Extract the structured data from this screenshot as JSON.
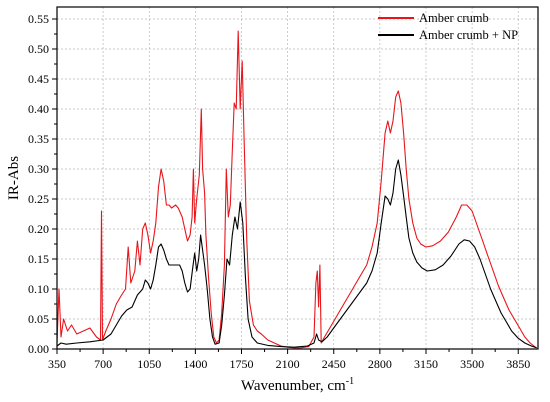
{
  "chart_data": {
    "type": "line",
    "title": "",
    "xlabel": "Wavenumber, cm",
    "xlabel_sup": "-1",
    "ylabel": "IR-Abs",
    "xlim": [
      350,
      4000
    ],
    "ylim": [
      0,
      0.57
    ],
    "x_ticks": [
      350,
      700,
      1050,
      1400,
      1750,
      2100,
      2450,
      2800,
      3150,
      3500,
      3850
    ],
    "y_ticks": [
      0.0,
      0.05,
      0.1,
      0.15,
      0.2,
      0.25,
      0.3,
      0.35,
      0.4,
      0.45,
      0.5,
      0.55
    ],
    "x_tick_labels": [
      "350",
      "700",
      "1050",
      "1400",
      "1750",
      "2100",
      "2450",
      "2800",
      "3150",
      "3500",
      "3850"
    ],
    "y_tick_labels": [
      "0.00",
      "0.05",
      "0.10",
      "0.15",
      "0.20",
      "0.25",
      "0.30",
      "0.35",
      "0.40",
      "0.45",
      "0.50",
      "0.55"
    ],
    "grid": true,
    "legend_position": "top-right",
    "series": [
      {
        "name": "Amber crumb",
        "color": "#e8151b",
        "points": [
          [
            350,
            0.01
          ],
          [
            365,
            0.1
          ],
          [
            380,
            0.02
          ],
          [
            400,
            0.05
          ],
          [
            430,
            0.03
          ],
          [
            460,
            0.04
          ],
          [
            500,
            0.025
          ],
          [
            550,
            0.03
          ],
          [
            600,
            0.035
          ],
          [
            650,
            0.02
          ],
          [
            680,
            0.015
          ],
          [
            688,
            0.23
          ],
          [
            695,
            0.015
          ],
          [
            720,
            0.03
          ],
          [
            760,
            0.05
          ],
          [
            800,
            0.075
          ],
          [
            840,
            0.09
          ],
          [
            870,
            0.1
          ],
          [
            890,
            0.17
          ],
          [
            910,
            0.11
          ],
          [
            940,
            0.13
          ],
          [
            960,
            0.18
          ],
          [
            980,
            0.14
          ],
          [
            1000,
            0.2
          ],
          [
            1020,
            0.21
          ],
          [
            1040,
            0.19
          ],
          [
            1060,
            0.16
          ],
          [
            1080,
            0.18
          ],
          [
            1100,
            0.21
          ],
          [
            1120,
            0.27
          ],
          [
            1140,
            0.3
          ],
          [
            1160,
            0.28
          ],
          [
            1180,
            0.24
          ],
          [
            1200,
            0.24
          ],
          [
            1220,
            0.235
          ],
          [
            1250,
            0.24
          ],
          [
            1270,
            0.235
          ],
          [
            1300,
            0.22
          ],
          [
            1320,
            0.2
          ],
          [
            1340,
            0.18
          ],
          [
            1360,
            0.19
          ],
          [
            1375,
            0.22
          ],
          [
            1385,
            0.3
          ],
          [
            1395,
            0.21
          ],
          [
            1410,
            0.25
          ],
          [
            1430,
            0.29
          ],
          [
            1445,
            0.4
          ],
          [
            1455,
            0.3
          ],
          [
            1470,
            0.26
          ],
          [
            1480,
            0.19
          ],
          [
            1500,
            0.12
          ],
          [
            1520,
            0.06
          ],
          [
            1540,
            0.02
          ],
          [
            1560,
            0.01
          ],
          [
            1580,
            0.015
          ],
          [
            1600,
            0.06
          ],
          [
            1620,
            0.14
          ],
          [
            1635,
            0.3
          ],
          [
            1650,
            0.22
          ],
          [
            1665,
            0.24
          ],
          [
            1680,
            0.33
          ],
          [
            1695,
            0.41
          ],
          [
            1710,
            0.4
          ],
          [
            1725,
            0.53
          ],
          [
            1740,
            0.4
          ],
          [
            1755,
            0.48
          ],
          [
            1770,
            0.35
          ],
          [
            1790,
            0.18
          ],
          [
            1810,
            0.08
          ],
          [
            1840,
            0.04
          ],
          [
            1870,
            0.03
          ],
          [
            1900,
            0.025
          ],
          [
            1950,
            0.015
          ],
          [
            2000,
            0.01
          ],
          [
            2050,
            0.005
          ],
          [
            2100,
            0.003
          ],
          [
            2150,
            0.002
          ],
          [
            2200,
            0.002
          ],
          [
            2260,
            0.004
          ],
          [
            2300,
            0.02
          ],
          [
            2315,
            0.11
          ],
          [
            2325,
            0.13
          ],
          [
            2335,
            0.07
          ],
          [
            2345,
            0.14
          ],
          [
            2355,
            0.01
          ],
          [
            2380,
            0.02
          ],
          [
            2420,
            0.035
          ],
          [
            2460,
            0.05
          ],
          [
            2500,
            0.065
          ],
          [
            2540,
            0.08
          ],
          [
            2580,
            0.095
          ],
          [
            2620,
            0.11
          ],
          [
            2660,
            0.125
          ],
          [
            2700,
            0.14
          ],
          [
            2740,
            0.17
          ],
          [
            2780,
            0.21
          ],
          [
            2810,
            0.28
          ],
          [
            2840,
            0.36
          ],
          [
            2860,
            0.38
          ],
          [
            2880,
            0.36
          ],
          [
            2900,
            0.38
          ],
          [
            2920,
            0.42
          ],
          [
            2940,
            0.43
          ],
          [
            2960,
            0.41
          ],
          [
            2980,
            0.36
          ],
          [
            3000,
            0.3
          ],
          [
            3020,
            0.25
          ],
          [
            3050,
            0.21
          ],
          [
            3080,
            0.185
          ],
          [
            3110,
            0.175
          ],
          [
            3150,
            0.17
          ],
          [
            3200,
            0.172
          ],
          [
            3260,
            0.18
          ],
          [
            3320,
            0.195
          ],
          [
            3380,
            0.22
          ],
          [
            3420,
            0.24
          ],
          [
            3460,
            0.24
          ],
          [
            3500,
            0.23
          ],
          [
            3540,
            0.205
          ],
          [
            3580,
            0.18
          ],
          [
            3620,
            0.155
          ],
          [
            3660,
            0.13
          ],
          [
            3700,
            0.105
          ],
          [
            3740,
            0.085
          ],
          [
            3780,
            0.065
          ],
          [
            3820,
            0.05
          ],
          [
            3860,
            0.035
          ],
          [
            3900,
            0.02
          ],
          [
            3940,
            0.01
          ],
          [
            3980,
            0.003
          ]
        ]
      },
      {
        "name": "Amber crumb + NP",
        "color": "#000000",
        "points": [
          [
            350,
            0.005
          ],
          [
            380,
            0.01
          ],
          [
            420,
            0.008
          ],
          [
            500,
            0.01
          ],
          [
            600,
            0.012
          ],
          [
            700,
            0.015
          ],
          [
            760,
            0.025
          ],
          [
            800,
            0.04
          ],
          [
            840,
            0.055
          ],
          [
            880,
            0.065
          ],
          [
            920,
            0.07
          ],
          [
            960,
            0.09
          ],
          [
            1000,
            0.1
          ],
          [
            1020,
            0.115
          ],
          [
            1040,
            0.11
          ],
          [
            1060,
            0.1
          ],
          [
            1080,
            0.115
          ],
          [
            1100,
            0.14
          ],
          [
            1120,
            0.17
          ],
          [
            1140,
            0.175
          ],
          [
            1160,
            0.165
          ],
          [
            1180,
            0.15
          ],
          [
            1200,
            0.14
          ],
          [
            1220,
            0.14
          ],
          [
            1250,
            0.14
          ],
          [
            1280,
            0.14
          ],
          [
            1300,
            0.13
          ],
          [
            1320,
            0.11
          ],
          [
            1340,
            0.095
          ],
          [
            1360,
            0.1
          ],
          [
            1380,
            0.135
          ],
          [
            1395,
            0.16
          ],
          [
            1410,
            0.13
          ],
          [
            1425,
            0.15
          ],
          [
            1440,
            0.19
          ],
          [
            1455,
            0.165
          ],
          [
            1470,
            0.14
          ],
          [
            1490,
            0.1
          ],
          [
            1510,
            0.05
          ],
          [
            1530,
            0.02
          ],
          [
            1550,
            0.008
          ],
          [
            1580,
            0.01
          ],
          [
            1600,
            0.04
          ],
          [
            1620,
            0.09
          ],
          [
            1640,
            0.15
          ],
          [
            1660,
            0.14
          ],
          [
            1680,
            0.19
          ],
          [
            1700,
            0.22
          ],
          [
            1720,
            0.2
          ],
          [
            1740,
            0.245
          ],
          [
            1760,
            0.21
          ],
          [
            1780,
            0.12
          ],
          [
            1800,
            0.05
          ],
          [
            1830,
            0.02
          ],
          [
            1870,
            0.01
          ],
          [
            1950,
            0.006
          ],
          [
            2050,
            0.004
          ],
          [
            2150,
            0.003
          ],
          [
            2250,
            0.005
          ],
          [
            2300,
            0.01
          ],
          [
            2320,
            0.025
          ],
          [
            2335,
            0.015
          ],
          [
            2360,
            0.012
          ],
          [
            2400,
            0.02
          ],
          [
            2450,
            0.035
          ],
          [
            2500,
            0.05
          ],
          [
            2550,
            0.065
          ],
          [
            2600,
            0.08
          ],
          [
            2650,
            0.095
          ],
          [
            2700,
            0.11
          ],
          [
            2740,
            0.13
          ],
          [
            2780,
            0.16
          ],
          [
            2810,
            0.21
          ],
          [
            2840,
            0.255
          ],
          [
            2860,
            0.25
          ],
          [
            2880,
            0.24
          ],
          [
            2900,
            0.26
          ],
          [
            2920,
            0.3
          ],
          [
            2940,
            0.315
          ],
          [
            2960,
            0.29
          ],
          [
            2980,
            0.255
          ],
          [
            3000,
            0.22
          ],
          [
            3020,
            0.185
          ],
          [
            3050,
            0.16
          ],
          [
            3080,
            0.145
          ],
          [
            3120,
            0.135
          ],
          [
            3160,
            0.13
          ],
          [
            3220,
            0.132
          ],
          [
            3280,
            0.14
          ],
          [
            3340,
            0.155
          ],
          [
            3400,
            0.175
          ],
          [
            3440,
            0.182
          ],
          [
            3480,
            0.18
          ],
          [
            3520,
            0.17
          ],
          [
            3560,
            0.15
          ],
          [
            3600,
            0.125
          ],
          [
            3640,
            0.1
          ],
          [
            3680,
            0.08
          ],
          [
            3720,
            0.06
          ],
          [
            3760,
            0.045
          ],
          [
            3800,
            0.03
          ],
          [
            3850,
            0.018
          ],
          [
            3900,
            0.01
          ],
          [
            3950,
            0.005
          ],
          [
            3990,
            0.002
          ]
        ]
      }
    ]
  }
}
